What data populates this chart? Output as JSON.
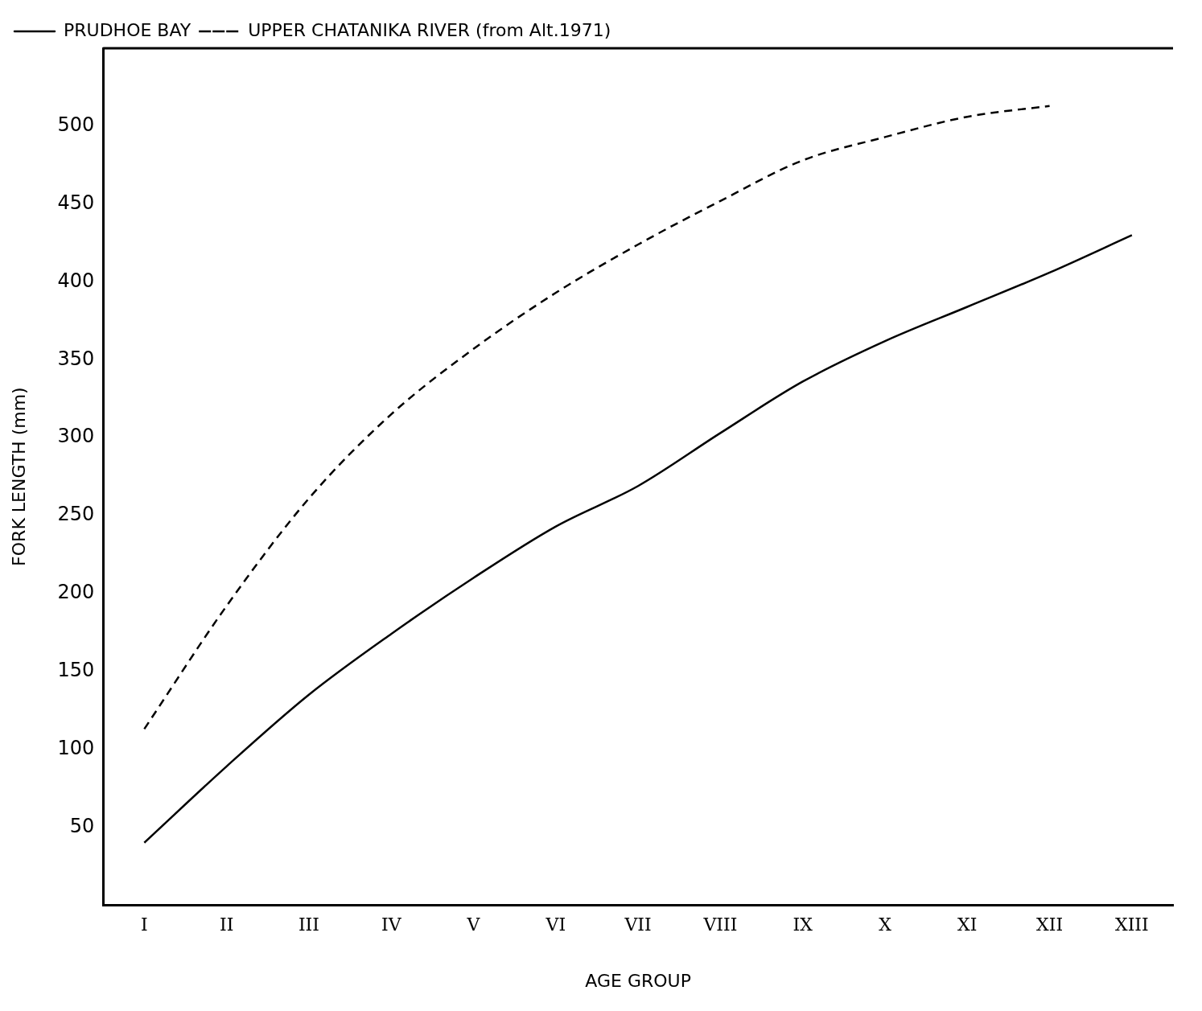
{
  "chart_data": {
    "type": "line",
    "xlabel": "AGE GROUP",
    "ylabel": "FORK LENGTH (mm)",
    "categories": [
      "I",
      "II",
      "III",
      "IV",
      "V",
      "VI",
      "VII",
      "VIII",
      "IX",
      "X",
      "XI",
      "XII",
      "XIII"
    ],
    "series": [
      {
        "name": "PRUDHOE BAY",
        "color": "#000000",
        "line_style": "solid",
        "values": [
          40,
          89,
          135,
          174,
          210,
          243,
          269,
          303,
          336,
          362,
          384,
          406,
          430
        ]
      },
      {
        "name": "UPPER CHATANIKA RIVER (from Alt.1971)",
        "color": "#000000",
        "line_style": "dashed",
        "values": [
          113,
          192,
          261,
          315,
          357,
          393,
          424,
          452,
          478,
          493,
          506,
          513,
          null
        ]
      }
    ],
    "ylim": [
      0,
      550
    ],
    "yticks": [
      50,
      100,
      150,
      200,
      250,
      300,
      350,
      400,
      450,
      500
    ],
    "grid": false,
    "legend": "top left",
    "marker": "none"
  }
}
